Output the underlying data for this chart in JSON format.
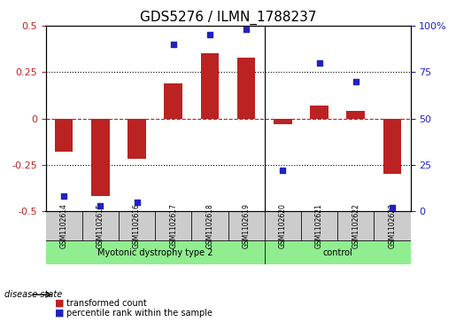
{
  "title": "GDS5276 / ILMN_1788237",
  "categories": [
    "GSM1102614",
    "GSM1102615",
    "GSM1102616",
    "GSM1102617",
    "GSM1102618",
    "GSM1102619",
    "GSM1102620",
    "GSM1102621",
    "GSM1102622",
    "GSM1102623"
  ],
  "bar_values": [
    -0.18,
    -0.42,
    -0.22,
    0.19,
    0.35,
    0.33,
    -0.03,
    0.07,
    0.04,
    -0.3
  ],
  "scatter_values": [
    8,
    3,
    5,
    90,
    95,
    98,
    22,
    80,
    70,
    2
  ],
  "bar_color": "#bb2222",
  "scatter_color": "#2222bb",
  "ylim_left": [
    -0.5,
    0.5
  ],
  "ylim_right": [
    0,
    100
  ],
  "yticks_left": [
    -0.5,
    -0.25,
    0,
    0.25,
    0.5
  ],
  "ytick_labels_left": [
    "-0.5",
    "-0.25",
    "0",
    "0.25",
    "0.5"
  ],
  "yticks_right": [
    0,
    25,
    50,
    75,
    100
  ],
  "ytick_labels_right": [
    "0",
    "25",
    "50",
    "75",
    "100%"
  ],
  "hlines": [
    0.25,
    0,
    -0.25
  ],
  "hline_styles": [
    "dotted",
    "dashed",
    "dotted"
  ],
  "groups": [
    {
      "label": "Myotonic dystrophy type 2",
      "start": 0,
      "end": 5,
      "color": "#90ee90"
    },
    {
      "label": "control",
      "start": 6,
      "end": 9,
      "color": "#90ee90"
    }
  ],
  "disease_state_label": "disease state",
  "legend_items": [
    {
      "color": "#bb2222",
      "label": "transformed count"
    },
    {
      "color": "#2222bb",
      "label": "percentile rank within the sample"
    }
  ],
  "bar_width": 0.5,
  "background_color": "#ffffff",
  "grid_color": "#dddddd",
  "tick_area_color": "#cccccc"
}
